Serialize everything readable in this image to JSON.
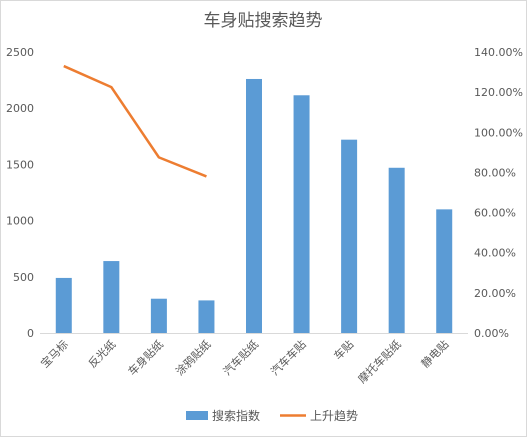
{
  "chart_data": {
    "type": "bar",
    "title": "车身贴搜索趋势",
    "categories": [
      "宝马标",
      "反光纸",
      "车身贴纸",
      "涂鸦贴纸",
      "汽车贴纸",
      "汽车车贴",
      "车贴",
      "摩托车贴纸",
      "静电贴"
    ],
    "series": [
      {
        "name": "搜索指数",
        "type": "bar",
        "axis": "left",
        "color": "#5b9bd5",
        "values": [
          490,
          640,
          305,
          290,
          2260,
          2115,
          1720,
          1470,
          1100
        ]
      },
      {
        "name": "上升趋势",
        "type": "line",
        "axis": "right",
        "color": "#ed7d31",
        "values": [
          1.33,
          1.225,
          0.875,
          0.78,
          null,
          null,
          null,
          null,
          null
        ]
      }
    ],
    "y_left": {
      "min": 0,
      "max": 2500,
      "ticks": [
        "0",
        "500",
        "1000",
        "1500",
        "2000",
        "2500"
      ]
    },
    "y_right": {
      "min": 0,
      "max": 1.4,
      "ticks": [
        "0.00%",
        "20.00%",
        "40.00%",
        "60.00%",
        "80.00%",
        "100.00%",
        "120.00%",
        "140.00%"
      ]
    },
    "grid": false,
    "legend_position": "bottom"
  }
}
